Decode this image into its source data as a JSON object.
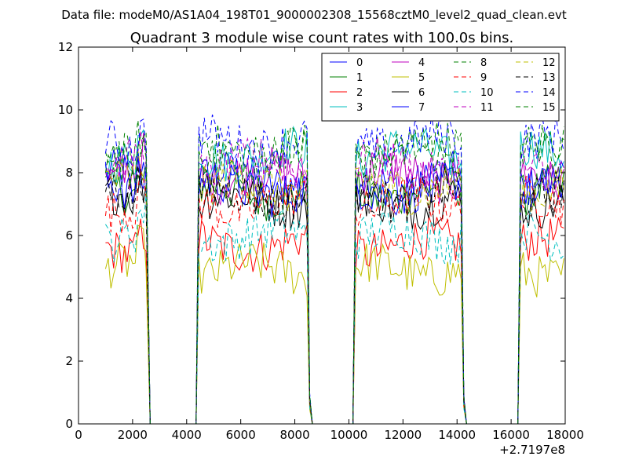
{
  "header": {
    "data_file": "Data file: modeM0/AS1A04_198T01_9000002308_15568cztM0_level2_quad_clean.evt"
  },
  "chart_data": {
    "type": "line",
    "title": "Quadrant 3 module wise count rates with 100.0s bins.",
    "xlabel": "",
    "ylabel": "",
    "x_offset_label": "+2.7197e8",
    "xlim": [
      0,
      18000
    ],
    "ylim": [
      0,
      12
    ],
    "x_ticks": [
      0,
      2000,
      4000,
      6000,
      8000,
      10000,
      12000,
      14000,
      16000,
      18000
    ],
    "y_ticks": [
      0,
      2,
      4,
      6,
      8,
      10,
      12
    ],
    "grid": false,
    "legend_position": "top-right",
    "legend_columns": 4,
    "segments": [
      [
        1000,
        2550
      ],
      [
        4450,
        8550
      ],
      [
        10250,
        14250
      ],
      [
        16350,
        18000
      ]
    ],
    "zero_after_segment_end": true,
    "series": [
      {
        "name": "0",
        "color": "#0000ff",
        "dash": false,
        "level": 7.8
      },
      {
        "name": "1",
        "color": "#008000",
        "dash": false,
        "level": 7.4
      },
      {
        "name": "2",
        "color": "#ff0000",
        "dash": false,
        "level": 5.7
      },
      {
        "name": "3",
        "color": "#00bfbf",
        "dash": false,
        "level": 8.6
      },
      {
        "name": "4",
        "color": "#bf00bf",
        "dash": false,
        "level": 7.9
      },
      {
        "name": "5",
        "color": "#bfbf00",
        "dash": false,
        "level": 4.9
      },
      {
        "name": "6",
        "color": "#000000",
        "dash": false,
        "level": 7.1
      },
      {
        "name": "7",
        "color": "#0000ff",
        "dash": false,
        "level": 7.5
      },
      {
        "name": "8",
        "color": "#008000",
        "dash": true,
        "level": 8.8
      },
      {
        "name": "9",
        "color": "#ff0000",
        "dash": true,
        "level": 7.0
      },
      {
        "name": "10",
        "color": "#00bfbf",
        "dash": true,
        "level": 6.0
      },
      {
        "name": "11",
        "color": "#bf00bf",
        "dash": true,
        "level": 8.2
      },
      {
        "name": "12",
        "color": "#bfbf00",
        "dash": true,
        "level": 7.6
      },
      {
        "name": "13",
        "color": "#000000",
        "dash": true,
        "level": 7.3
      },
      {
        "name": "14",
        "color": "#0000ff",
        "dash": true,
        "level": 9.0
      },
      {
        "name": "15",
        "color": "#008000",
        "dash": true,
        "level": 8.5
      }
    ]
  }
}
